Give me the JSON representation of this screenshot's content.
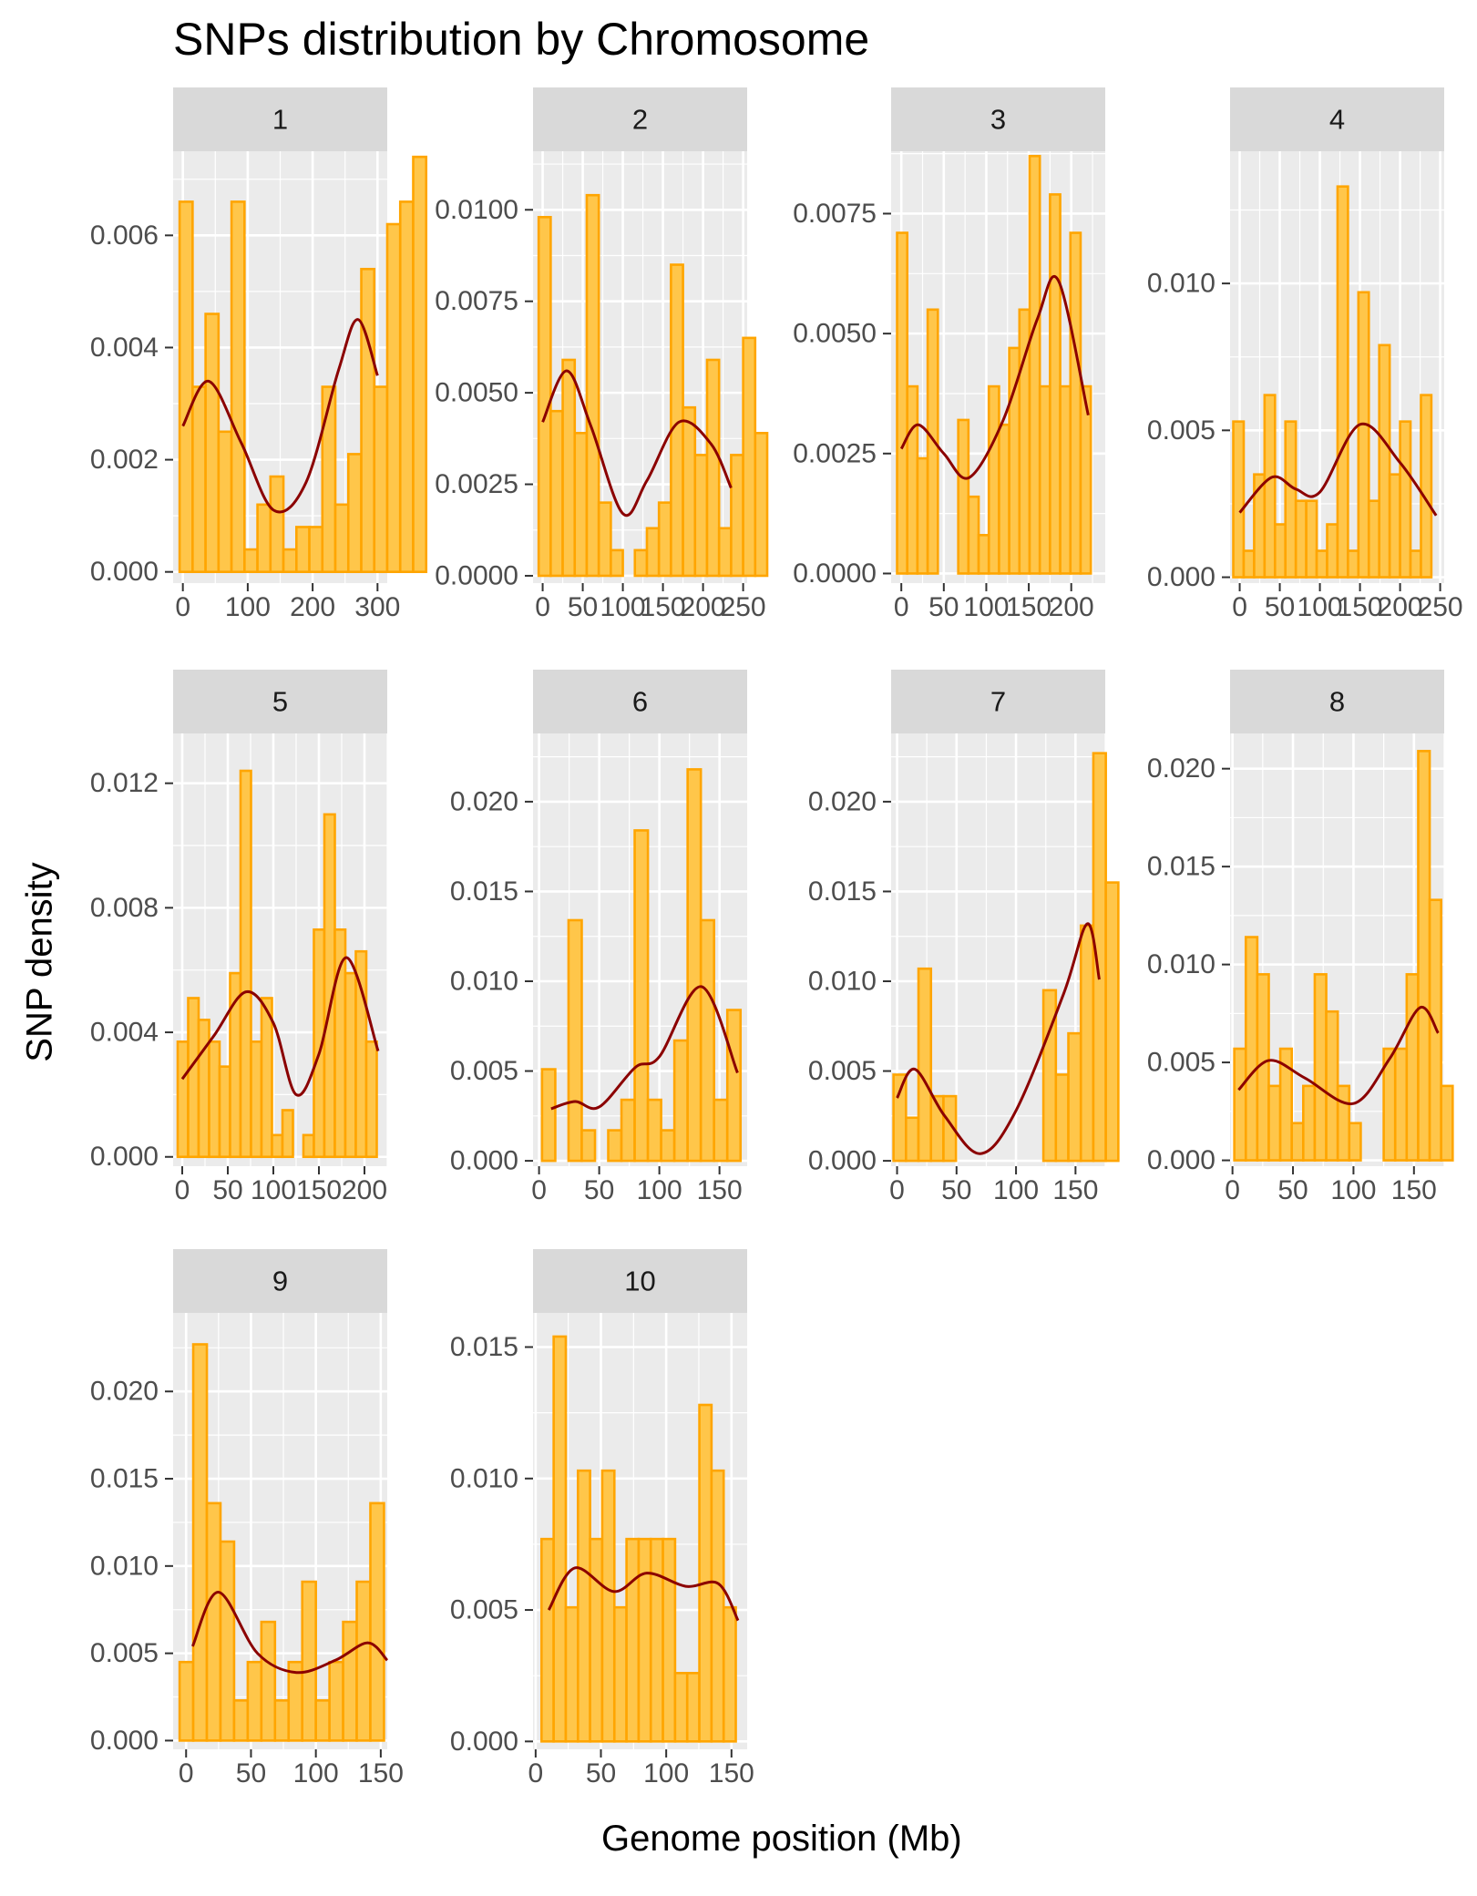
{
  "title": "SNPs distribution by Chromosome",
  "xlabel": "Genome position (Mb)",
  "ylabel": "SNP density",
  "colors": {
    "panel_bg": "#ebebeb",
    "grid": "#ffffff",
    "strip_bg": "#d9d9d9",
    "bar_fill": "#ffc64a",
    "bar_stroke": "#ffa500",
    "density_line": "#8b0000",
    "tick_text": "#4d4d4d"
  },
  "chart_data": [
    {
      "type": "histogram",
      "strip": "1",
      "xlim": [
        -15,
        315
      ],
      "ylim": [
        -0.0002,
        0.0075
      ],
      "xticks": [
        {
          "v": 0,
          "label": "0"
        },
        {
          "v": 100,
          "label": "100"
        },
        {
          "v": 200,
          "label": "200"
        },
        {
          "v": 300,
          "label": "300"
        }
      ],
      "yticks": [
        {
          "v": 0,
          "label": "0.000"
        },
        {
          "v": 0.002,
          "label": "0.002"
        },
        {
          "v": 0.004,
          "label": "0.004"
        },
        {
          "v": 0.006,
          "label": "0.006"
        }
      ],
      "bins": {
        "start": -5,
        "width": 20
      },
      "values": [
        0.0066,
        0.0033,
        0.0046,
        0.0025,
        0.0066,
        0.0004,
        0.0012,
        0.0017,
        0.0004,
        0.0008,
        0.0008,
        0.0033,
        0.0012,
        0.0021,
        0.0054,
        0.0033,
        0.0062,
        0.0066,
        0.0074
      ],
      "density": {
        "x": [
          0,
          40,
          90,
          140,
          190,
          240,
          270,
          300
        ],
        "y": [
          0.0026,
          0.0034,
          0.0023,
          0.0011,
          0.0016,
          0.0036,
          0.0045,
          0.0035
        ]
      }
    },
    {
      "type": "histogram",
      "strip": "2",
      "xlim": [
        -12,
        255
      ],
      "ylim": [
        -0.0002,
        0.0116
      ],
      "xticks": [
        {
          "v": 0,
          "label": "0"
        },
        {
          "v": 50,
          "label": "50"
        },
        {
          "v": 100,
          "label": "100"
        },
        {
          "v": 150,
          "label": "150"
        },
        {
          "v": 200,
          "label": "200"
        },
        {
          "v": 250,
          "label": "250"
        }
      ],
      "yticks": [
        {
          "v": 0,
          "label": "0.0000"
        },
        {
          "v": 0.0025,
          "label": "0.0025"
        },
        {
          "v": 0.005,
          "label": "0.0050"
        },
        {
          "v": 0.0075,
          "label": "0.0075"
        },
        {
          "v": 0.01,
          "label": "0.0100"
        }
      ],
      "bins": {
        "start": -5,
        "width": 15
      },
      "values": [
        0.0098,
        0.0045,
        0.0059,
        0.0039,
        0.0104,
        0.002,
        0.0007,
        0.0,
        0.0007,
        0.0013,
        0.002,
        0.0085,
        0.0046,
        0.0033,
        0.0059,
        0.0013,
        0.0033,
        0.0065,
        0.0039
      ],
      "density": {
        "x": [
          0,
          30,
          60,
          100,
          130,
          170,
          210,
          235
        ],
        "y": [
          0.0042,
          0.0056,
          0.0041,
          0.0017,
          0.0026,
          0.0042,
          0.0036,
          0.0024
        ]
      }
    },
    {
      "type": "histogram",
      "strip": "3",
      "xlim": [
        -12,
        240
      ],
      "ylim": [
        -0.0002,
        0.0088
      ],
      "xticks": [
        {
          "v": 0,
          "label": "0"
        },
        {
          "v": 50,
          "label": "50"
        },
        {
          "v": 100,
          "label": "100"
        },
        {
          "v": 150,
          "label": "150"
        },
        {
          "v": 200,
          "label": "200"
        }
      ],
      "yticks": [
        {
          "v": 0,
          "label": "0.0000"
        },
        {
          "v": 0.0025,
          "label": "0.0025"
        },
        {
          "v": 0.005,
          "label": "0.0050"
        },
        {
          "v": 0.0075,
          "label": "0.0075"
        }
      ],
      "bins": {
        "start": -5,
        "width": 12
      },
      "values": [
        0.0071,
        0.0039,
        0.0024,
        0.0055,
        0.0,
        0.0,
        0.0032,
        0.0016,
        0.0008,
        0.0039,
        0.0031,
        0.0047,
        0.0055,
        0.0087,
        0.0039,
        0.0079,
        0.0039,
        0.0071,
        0.0039
      ],
      "density": {
        "x": [
          0,
          20,
          50,
          80,
          120,
          160,
          185,
          220
        ],
        "y": [
          0.0026,
          0.0031,
          0.0025,
          0.002,
          0.0032,
          0.0053,
          0.0061,
          0.0033
        ]
      }
    },
    {
      "type": "histogram",
      "strip": "4",
      "xlim": [
        -12,
        255
      ],
      "ylim": [
        -0.0002,
        0.0145
      ],
      "xticks": [
        {
          "v": 0,
          "label": "0"
        },
        {
          "v": 50,
          "label": "50"
        },
        {
          "v": 100,
          "label": "100"
        },
        {
          "v": 150,
          "label": "150"
        },
        {
          "v": 200,
          "label": "200"
        },
        {
          "v": 250,
          "label": "250"
        }
      ],
      "yticks": [
        {
          "v": 0,
          "label": "0.000"
        },
        {
          "v": 0.005,
          "label": "0.005"
        },
        {
          "v": 0.01,
          "label": "0.010"
        }
      ],
      "bins": {
        "start": -8,
        "width": 13
      },
      "values": [
        0.0053,
        0.0009,
        0.0035,
        0.0062,
        0.0018,
        0.0053,
        0.0026,
        0.0026,
        0.0009,
        0.0018,
        0.0133,
        0.0009,
        0.0097,
        0.0026,
        0.0079,
        0.0035,
        0.0053,
        0.0009,
        0.0062
      ],
      "density": {
        "x": [
          0,
          40,
          70,
          100,
          150,
          200,
          245
        ],
        "y": [
          0.0022,
          0.0034,
          0.003,
          0.0029,
          0.0052,
          0.0039,
          0.0021
        ]
      }
    },
    {
      "type": "histogram",
      "strip": "5",
      "xlim": [
        -10,
        225
      ],
      "ylim": [
        -0.0003,
        0.0136
      ],
      "xticks": [
        {
          "v": 0,
          "label": "0"
        },
        {
          "v": 50,
          "label": "50"
        },
        {
          "v": 100,
          "label": "100"
        },
        {
          "v": 150,
          "label": "150"
        },
        {
          "v": 200,
          "label": "200"
        }
      ],
      "yticks": [
        {
          "v": 0,
          "label": "0.000"
        },
        {
          "v": 0.004,
          "label": "0.004"
        },
        {
          "v": 0.008,
          "label": "0.008"
        },
        {
          "v": 0.012,
          "label": "0.012"
        }
      ],
      "bins": {
        "start": -5,
        "width": 11.5
      },
      "values": [
        0.0037,
        0.0051,
        0.0044,
        0.0037,
        0.0029,
        0.0059,
        0.0124,
        0.0037,
        0.0051,
        0.0007,
        0.0015,
        0.0,
        0.0007,
        0.0073,
        0.011,
        0.0073,
        0.0059,
        0.0066,
        0.0037
      ],
      "density": {
        "x": [
          0,
          35,
          70,
          100,
          125,
          150,
          180,
          215
        ],
        "y": [
          0.0025,
          0.0039,
          0.0053,
          0.0043,
          0.002,
          0.0033,
          0.0064,
          0.0034
        ]
      }
    },
    {
      "type": "histogram",
      "strip": "6",
      "xlim": [
        -5,
        173
      ],
      "ylim": [
        -0.0003,
        0.0238
      ],
      "xticks": [
        {
          "v": 0,
          "label": "0"
        },
        {
          "v": 50,
          "label": "50"
        },
        {
          "v": 100,
          "label": "100"
        },
        {
          "v": 150,
          "label": "150"
        }
      ],
      "yticks": [
        {
          "v": 0,
          "label": "0.000"
        },
        {
          "v": 0.005,
          "label": "0.005"
        },
        {
          "v": 0.01,
          "label": "0.010"
        },
        {
          "v": 0.015,
          "label": "0.015"
        },
        {
          "v": 0.02,
          "label": "0.020"
        }
      ],
      "bins": {
        "start": 2.5,
        "width": 11
      },
      "values": [
        0.0051,
        0.0,
        0.0134,
        0.0017,
        0.0,
        0.0017,
        0.0034,
        0.0184,
        0.0034,
        0.0017,
        0.0067,
        0.0218,
        0.0134,
        0.0034,
        0.0084
      ],
      "density": {
        "x": [
          10,
          30,
          50,
          80,
          100,
          135,
          165
        ],
        "y": [
          0.0029,
          0.0033,
          0.003,
          0.0052,
          0.0058,
          0.0097,
          0.0049
        ]
      }
    },
    {
      "type": "histogram",
      "strip": "7",
      "xlim": [
        -5,
        175
      ],
      "ylim": [
        -0.0003,
        0.0238
      ],
      "xticks": [
        {
          "v": 0,
          "label": "0"
        },
        {
          "v": 50,
          "label": "50"
        },
        {
          "v": 100,
          "label": "100"
        },
        {
          "v": 150,
          "label": "150"
        }
      ],
      "yticks": [
        {
          "v": 0,
          "label": "0.000"
        },
        {
          "v": 0.005,
          "label": "0.005"
        },
        {
          "v": 0.01,
          "label": "0.010"
        },
        {
          "v": 0.015,
          "label": "0.015"
        },
        {
          "v": 0.02,
          "label": "0.020"
        }
      ],
      "bins": {
        "start": -3,
        "width": 10.5
      },
      "values": [
        0.0048,
        0.0024,
        0.0107,
        0.0036,
        0.0036,
        0.0,
        0.0,
        0.0,
        0.0,
        0.0,
        0.0,
        0.0,
        0.0095,
        0.0048,
        0.0071,
        0.0131,
        0.0227,
        0.0155
      ],
      "density": {
        "x": [
          0,
          15,
          40,
          70,
          100,
          140,
          160,
          170
        ],
        "y": [
          0.0035,
          0.0051,
          0.0025,
          0.0004,
          0.0028,
          0.0093,
          0.0132,
          0.0101
        ]
      }
    },
    {
      "type": "histogram",
      "strip": "8",
      "xlim": [
        -2,
        175
      ],
      "ylim": [
        -0.0003,
        0.0218
      ],
      "xticks": [
        {
          "v": 0,
          "label": "0"
        },
        {
          "v": 50,
          "label": "50"
        },
        {
          "v": 100,
          "label": "100"
        },
        {
          "v": 150,
          "label": "150"
        }
      ],
      "yticks": [
        {
          "v": 0,
          "label": "0.000"
        },
        {
          "v": 0.005,
          "label": "0.005"
        },
        {
          "v": 0.01,
          "label": "0.010"
        },
        {
          "v": 0.015,
          "label": "0.015"
        },
        {
          "v": 0.02,
          "label": "0.020"
        }
      ],
      "bins": {
        "start": 1.5,
        "width": 9.5
      },
      "values": [
        0.0057,
        0.0114,
        0.0095,
        0.0038,
        0.0057,
        0.0019,
        0.0038,
        0.0095,
        0.0076,
        0.0038,
        0.0019,
        0.0,
        0.0,
        0.0057,
        0.0057,
        0.0095,
        0.0209,
        0.0133,
        0.0038
      ],
      "density": {
        "x": [
          5,
          30,
          60,
          100,
          130,
          155,
          170
        ],
        "y": [
          0.0036,
          0.0051,
          0.0042,
          0.0029,
          0.0052,
          0.0078,
          0.0065
        ]
      }
    },
    {
      "type": "histogram",
      "strip": "9",
      "xlim": [
        -10,
        155
      ],
      "ylim": [
        -0.0005,
        0.0245
      ],
      "xticks": [
        {
          "v": 0,
          "label": "0"
        },
        {
          "v": 50,
          "label": "50"
        },
        {
          "v": 100,
          "label": "100"
        },
        {
          "v": 150,
          "label": "150"
        }
      ],
      "yticks": [
        {
          "v": 0,
          "label": "0.000"
        },
        {
          "v": 0.005,
          "label": "0.005"
        },
        {
          "v": 0.01,
          "label": "0.010"
        },
        {
          "v": 0.015,
          "label": "0.015"
        },
        {
          "v": 0.02,
          "label": "0.020"
        }
      ],
      "bins": {
        "start": -5,
        "width": 10.5
      },
      "values": [
        0.0045,
        0.0227,
        0.0136,
        0.0114,
        0.0023,
        0.0045,
        0.0068,
        0.0023,
        0.0045,
        0.0091,
        0.0023,
        0.0045,
        0.0068,
        0.0091,
        0.0136
      ],
      "density": {
        "x": [
          5,
          25,
          55,
          85,
          115,
          140,
          155
        ],
        "y": [
          0.0054,
          0.0085,
          0.005,
          0.0039,
          0.0046,
          0.0056,
          0.0046
        ]
      }
    },
    {
      "type": "histogram",
      "strip": "10",
      "xlim": [
        -2,
        162
      ],
      "ylim": [
        -0.0003,
        0.0163
      ],
      "xticks": [
        {
          "v": 0,
          "label": "0"
        },
        {
          "v": 50,
          "label": "50"
        },
        {
          "v": 100,
          "label": "100"
        },
        {
          "v": 150,
          "label": "150"
        }
      ],
      "yticks": [
        {
          "v": 0,
          "label": "0.000"
        },
        {
          "v": 0.005,
          "label": "0.005"
        },
        {
          "v": 0.01,
          "label": "0.010"
        },
        {
          "v": 0.015,
          "label": "0.015"
        }
      ],
      "bins": {
        "start": 4.5,
        "width": 9.3
      },
      "values": [
        0.0077,
        0.0154,
        0.0051,
        0.0103,
        0.0077,
        0.0103,
        0.0051,
        0.0077,
        0.0077,
        0.0077,
        0.0077,
        0.0026,
        0.0026,
        0.0128,
        0.0103,
        0.0051
      ],
      "density": {
        "x": [
          10,
          30,
          60,
          85,
          115,
          140,
          155
        ],
        "y": [
          0.005,
          0.0066,
          0.0057,
          0.0064,
          0.0059,
          0.006,
          0.0046
        ]
      }
    }
  ]
}
